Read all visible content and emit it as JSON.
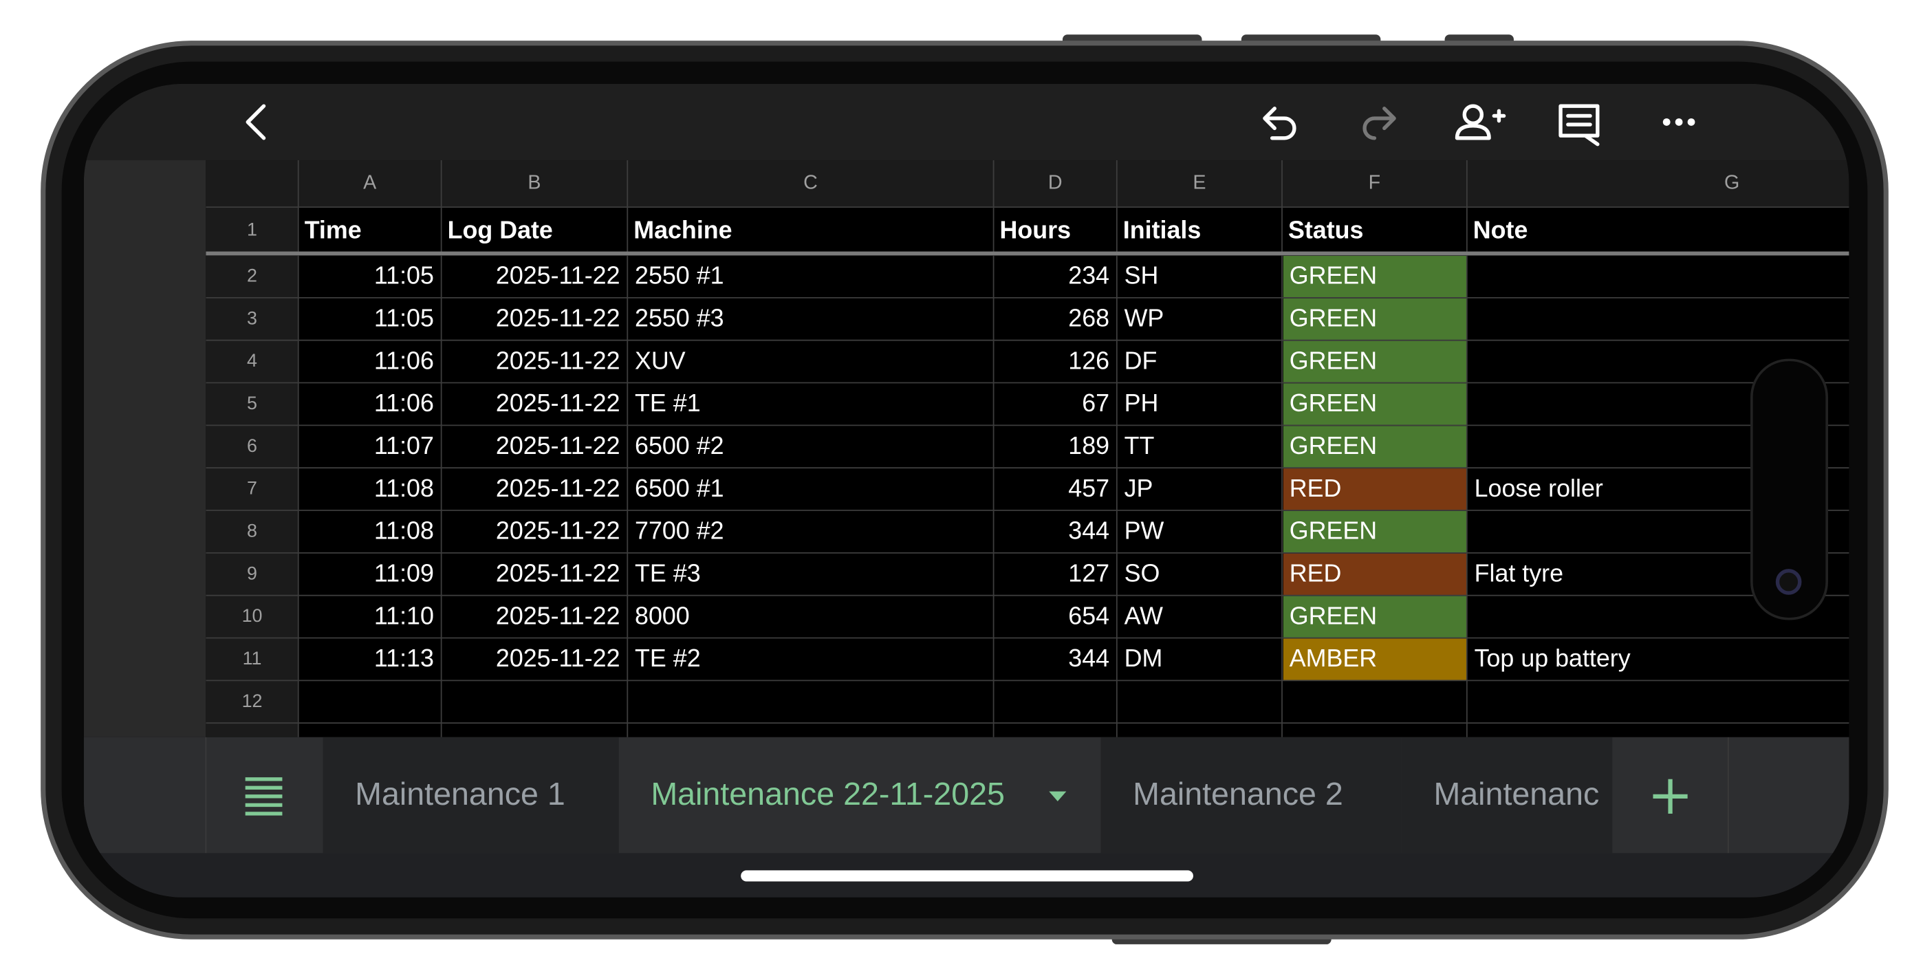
{
  "table": {
    "columns": [
      "A",
      "B",
      "C",
      "D",
      "E",
      "F",
      "G"
    ],
    "row_numbers": [
      1,
      2,
      3,
      4,
      5,
      6,
      7,
      8,
      9,
      10,
      11,
      12
    ],
    "header": [
      "Time",
      "Log Date",
      "Machine",
      "Hours",
      "Initials",
      "Status",
      "Note"
    ],
    "rows": [
      {
        "time": "11:05",
        "log_date": "2025-11-22",
        "machine": "2550 #1",
        "hours": 234,
        "initials": "SH",
        "status": "GREEN"
      },
      {
        "time": "11:05",
        "log_date": "2025-11-22",
        "machine": "2550 #3",
        "hours": 268,
        "initials": "WP",
        "status": "GREEN"
      },
      {
        "time": "11:06",
        "log_date": "2025-11-22",
        "machine": "XUV",
        "hours": 126,
        "initials": "DF",
        "status": "GREEN"
      },
      {
        "time": "11:06",
        "log_date": "2025-11-22",
        "machine": "TE #1",
        "hours": 67,
        "initials": "PH",
        "status": "GREEN"
      },
      {
        "time": "11:07",
        "log_date": "2025-11-22",
        "machine": "6500 #2",
        "hours": 189,
        "initials": "TT",
        "status": "GREEN"
      },
      {
        "time": "11:08",
        "log_date": "2025-11-22",
        "machine": "6500 #1",
        "hours": 457,
        "initials": "JP",
        "status": "RED",
        "note": "Loose roller"
      },
      {
        "time": "11:08",
        "log_date": "2025-11-22",
        "machine": "7700 #2",
        "hours": 344,
        "initials": "PW",
        "status": "GREEN"
      },
      {
        "time": "11:09",
        "log_date": "2025-11-22",
        "machine": "TE #3",
        "hours": 127,
        "initials": "SO",
        "status": "RED",
        "note": "Flat tyre"
      },
      {
        "time": "11:10",
        "log_date": "2025-11-22",
        "machine": "8000",
        "hours": 654,
        "initials": "AW",
        "status": "GREEN"
      },
      {
        "time": "11:13",
        "log_date": "2025-11-22",
        "machine": "TE #2",
        "hours": 344,
        "initials": "DM",
        "status": "AMBER",
        "note": "Top up battery"
      }
    ],
    "status_colors": {
      "GREEN": "#4a7a30",
      "RED": "#7b3912",
      "AMBER": "#9b7100"
    }
  },
  "sheet_tabs": [
    {
      "label": "Maintenance 1",
      "active": false
    },
    {
      "label": "Maintenance 22-11-2025",
      "active": true
    },
    {
      "label": "Maintenance 2",
      "active": false
    },
    {
      "label": "Maintenanc",
      "active": false
    }
  ]
}
